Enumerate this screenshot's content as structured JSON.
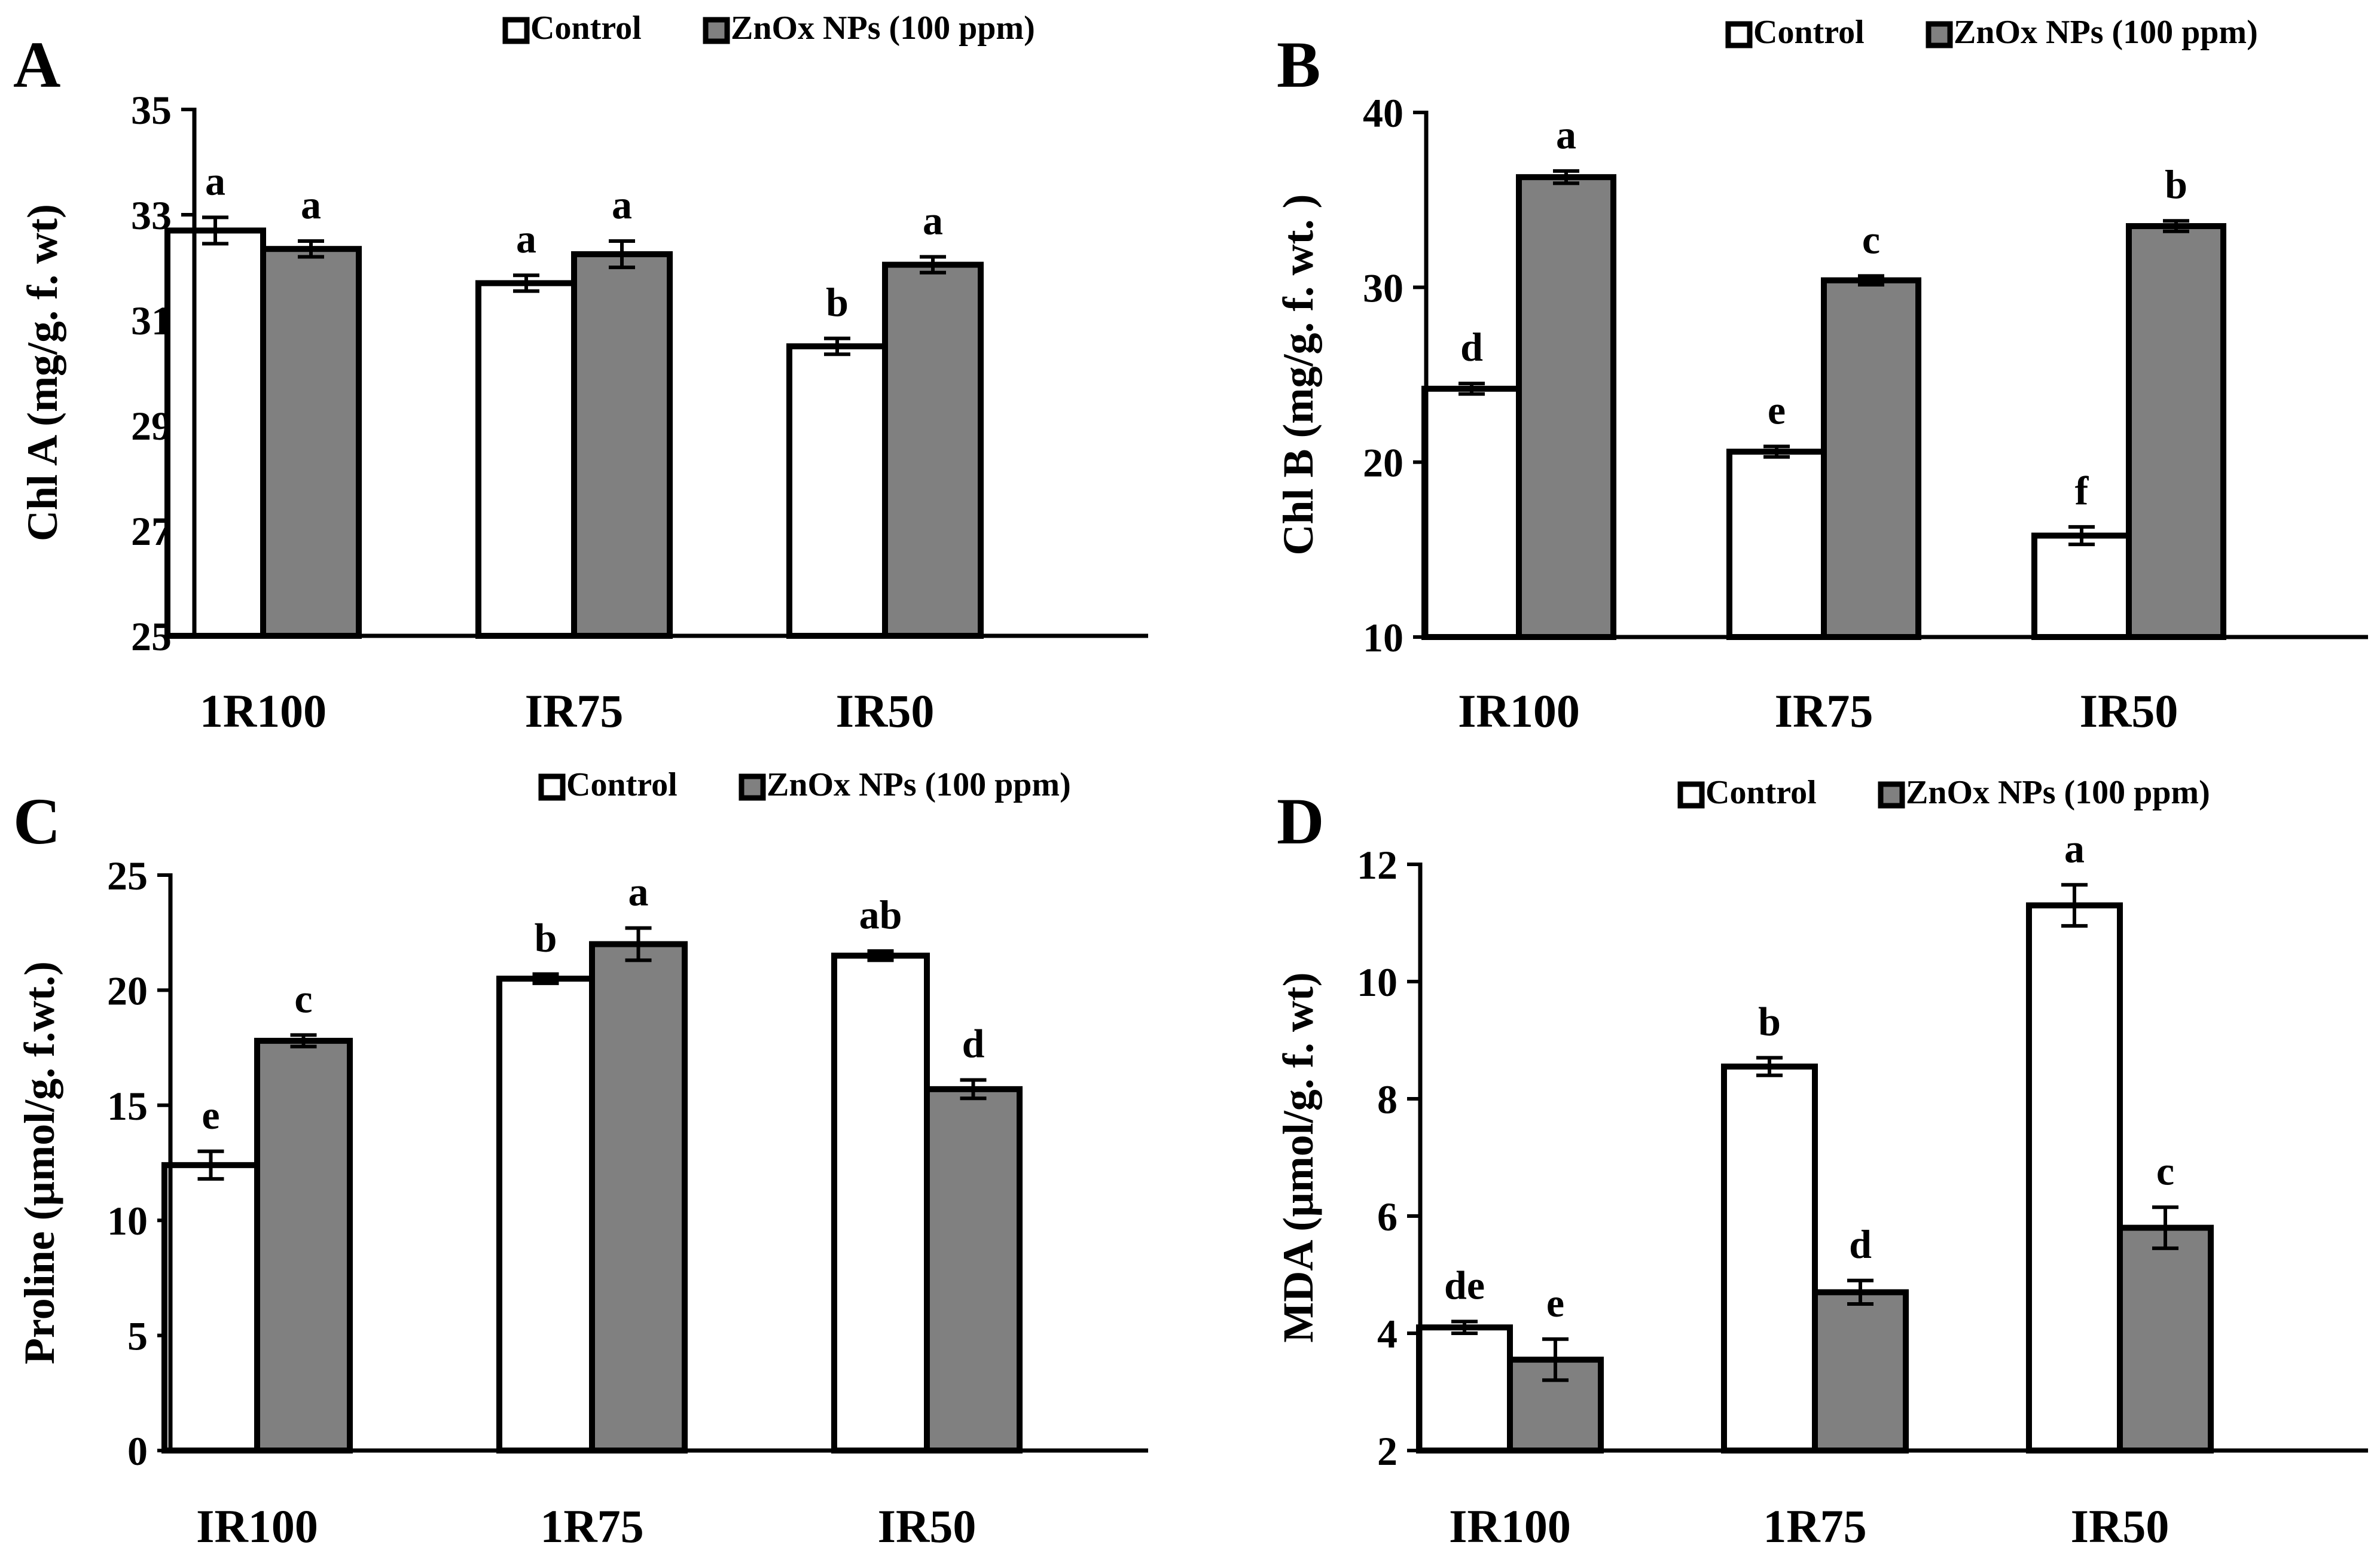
{
  "colors": {
    "control": "#ffffff",
    "treated": "#808080",
    "stroke": "#000000",
    "text": "#000000"
  },
  "chart_data": [
    {
      "panel": "A",
      "type": "bar",
      "ylabel": "Chl A (mg/g. f. wt)",
      "ylim": [
        25,
        35
      ],
      "yticks": [
        25,
        27,
        29,
        31,
        33,
        35
      ],
      "categories": [
        "1R100",
        "IR75",
        "IR50"
      ],
      "legend": [
        "Control",
        "ZnOx NPs (100 ppm)"
      ],
      "series": [
        {
          "name": "Control",
          "values": [
            32.7,
            31.7,
            30.5
          ],
          "errors": [
            0.25,
            0.15,
            0.15
          ],
          "letters": [
            "a",
            "a",
            "b"
          ]
        },
        {
          "name": "ZnOx NPs (100 ppm)",
          "values": [
            32.35,
            32.25,
            32.05
          ],
          "errors": [
            0.15,
            0.25,
            0.15
          ],
          "letters": [
            "a",
            "a",
            "a"
          ]
        }
      ]
    },
    {
      "panel": "B",
      "type": "bar",
      "ylabel": "Chl B (mg/g. f. wt. )",
      "ylim": [
        10,
        40
      ],
      "yticks": [
        10,
        20,
        30,
        40
      ],
      "categories": [
        "IR100",
        "IR75",
        "IR50"
      ],
      "legend": [
        "Control",
        "ZnOx NPs (100 ppm)"
      ],
      "series": [
        {
          "name": "Control",
          "values": [
            24.2,
            20.6,
            15.8
          ],
          "errors": [
            0.3,
            0.3,
            0.5
          ],
          "letters": [
            "d",
            "e",
            "f"
          ]
        },
        {
          "name": "ZnOx NPs (100 ppm)",
          "values": [
            36.3,
            30.4,
            33.5
          ],
          "errors": [
            0.35,
            0.25,
            0.3
          ],
          "letters": [
            "a",
            "c",
            "b"
          ]
        }
      ]
    },
    {
      "panel": "C",
      "type": "bar",
      "ylabel": "Proline (µmol/g. f.wt.)",
      "ylim": [
        0,
        25
      ],
      "yticks": [
        0,
        5,
        10,
        15,
        20,
        25
      ],
      "categories": [
        "IR100",
        "1R75",
        "IR50"
      ],
      "legend": [
        "Control",
        "ZnOx NPs (100 ppm)"
      ],
      "series": [
        {
          "name": "Control",
          "values": [
            12.4,
            20.5,
            21.5
          ],
          "errors": [
            0.6,
            0.2,
            0.2
          ],
          "letters": [
            "e",
            "b",
            "ab"
          ]
        },
        {
          "name": "ZnOx NPs (100 ppm)",
          "values": [
            17.8,
            22.0,
            15.7
          ],
          "errors": [
            0.25,
            0.7,
            0.4
          ],
          "letters": [
            "c",
            "a",
            "d"
          ]
        }
      ]
    },
    {
      "panel": "D",
      "type": "bar",
      "ylabel": "MDA (µmol/g. f. wt)",
      "ylim": [
        2,
        12
      ],
      "yticks": [
        2,
        4,
        6,
        8,
        10,
        12
      ],
      "categories": [
        "IR100",
        "1R75",
        "IR50"
      ],
      "legend": [
        "Control",
        "ZnOx NPs (100 ppm)"
      ],
      "series": [
        {
          "name": "Control",
          "values": [
            4.1,
            8.55,
            11.3
          ],
          "errors": [
            0.1,
            0.15,
            0.35
          ],
          "letters": [
            "de",
            "b",
            "a"
          ]
        },
        {
          "name": "ZnOx NPs (100 ppm)",
          "values": [
            3.55,
            4.7,
            5.8
          ],
          "errors": [
            0.35,
            0.2,
            0.35
          ],
          "letters": [
            "e",
            "d",
            "c"
          ]
        }
      ]
    }
  ]
}
